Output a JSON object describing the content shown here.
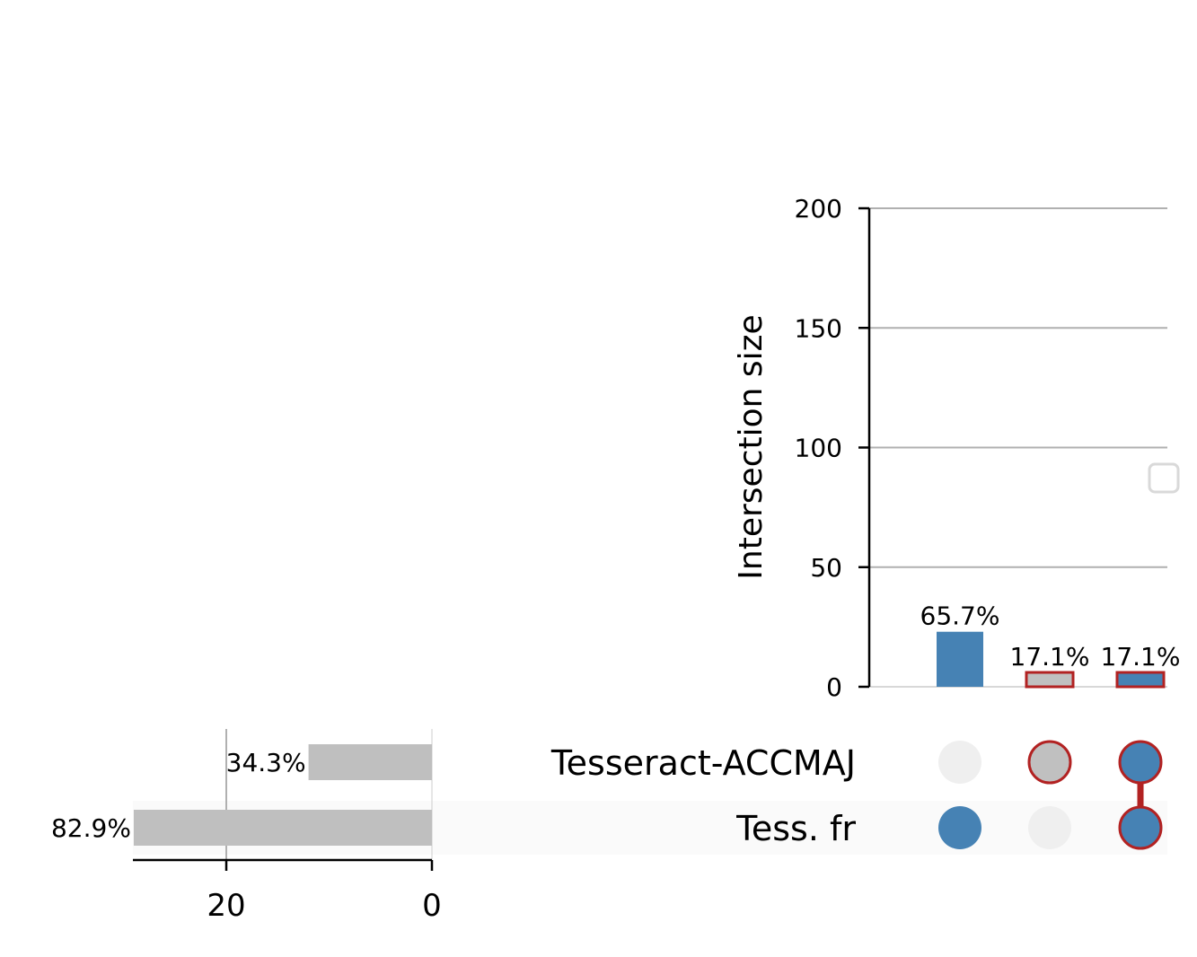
{
  "chart_data": {
    "type": "upset",
    "title": "",
    "ylabel": "Intersection size",
    "ylim": [
      0,
      200
    ],
    "yticks": [
      0,
      50,
      100,
      150,
      200
    ],
    "grid": true,
    "sets": [
      {
        "name": "Tesseract-ACCMAJ",
        "size": 12,
        "label": "34.3%"
      },
      {
        "name": "Tess. fr",
        "size": 29,
        "label": "82.9%"
      }
    ],
    "set_size_ticks": [
      20,
      0
    ],
    "intersections": [
      {
        "members": [
          "Tess. fr"
        ],
        "value": 23,
        "label": "65.7%",
        "highlight": false
      },
      {
        "members": [
          "Tesseract-ACCMAJ"
        ],
        "value": 6,
        "label": "17.1%",
        "highlight": true
      },
      {
        "members": [
          "Tesseract-ACCMAJ",
          "Tess. fr"
        ],
        "value": 6,
        "label": "17.1%",
        "highlight": true
      }
    ],
    "colors": {
      "bar": "#4682b4",
      "highlight_fill_single": "#c0c0c0",
      "highlight_edge": "#b22222",
      "set_bar": "#bfbfbf",
      "inactive_dot": "#efefef",
      "grid": "#b0b0b0",
      "legend_box": "#d9d9d9"
    },
    "legend": {
      "position": "right",
      "entries": []
    }
  }
}
